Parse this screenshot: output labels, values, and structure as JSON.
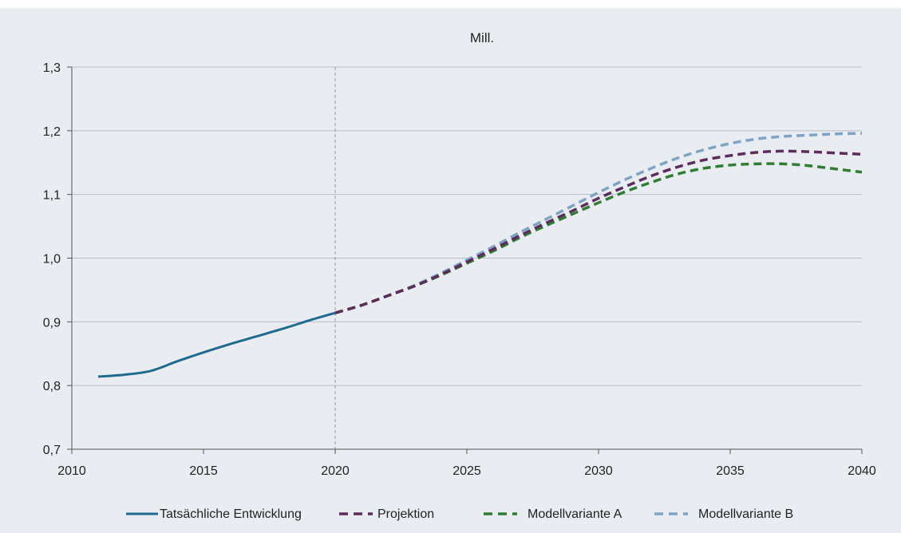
{
  "chart_data": {
    "type": "line",
    "unit_label": "Mill.",
    "xlim": [
      2010,
      2040
    ],
    "ylim": [
      0.7,
      1.3
    ],
    "x_ticks": [
      "2010",
      "2015",
      "2020",
      "2025",
      "2030",
      "2035",
      "2040"
    ],
    "y_ticks": [
      "0,7",
      "0,8",
      "0,9",
      "1,0",
      "1,1",
      "1,2",
      "1,3"
    ],
    "grid": "horizontal",
    "reference_line_x": 2020,
    "legend_position": "bottom",
    "series": [
      {
        "name": "Tatsächliche Entwicklung",
        "style": "solid",
        "color": "#1f6a8f",
        "x": [
          2011,
          2012,
          2013,
          2014,
          2015,
          2016,
          2017,
          2018,
          2019,
          2020
        ],
        "y": [
          0.814,
          0.817,
          0.823,
          0.838,
          0.852,
          0.865,
          0.877,
          0.889,
          0.902,
          0.914
        ]
      },
      {
        "name": "Projektion",
        "style": "dashed",
        "color": "#5c2d5b",
        "x": [
          2020,
          2021,
          2022,
          2023,
          2024,
          2025,
          2026,
          2027,
          2028,
          2029,
          2030,
          2031,
          2032,
          2033,
          2034,
          2035,
          2036,
          2037,
          2038,
          2039,
          2040
        ],
        "y": [
          0.914,
          0.926,
          0.941,
          0.956,
          0.974,
          0.994,
          1.014,
          1.035,
          1.055,
          1.074,
          1.094,
          1.112,
          1.129,
          1.143,
          1.154,
          1.161,
          1.166,
          1.168,
          1.167,
          1.165,
          1.163
        ]
      },
      {
        "name": "Modellvariante A",
        "style": "dashed",
        "color": "#2f7d32",
        "x": [
          2020,
          2021,
          2022,
          2023,
          2024,
          2025,
          2026,
          2027,
          2028,
          2029,
          2030,
          2031,
          2032,
          2033,
          2034,
          2035,
          2036,
          2037,
          2038,
          2039,
          2040
        ],
        "y": [
          0.914,
          0.926,
          0.941,
          0.956,
          0.973,
          0.992,
          1.011,
          1.032,
          1.051,
          1.069,
          1.087,
          1.104,
          1.119,
          1.132,
          1.141,
          1.146,
          1.148,
          1.148,
          1.145,
          1.14,
          1.135
        ]
      },
      {
        "name": "Modellvariante B",
        "style": "dashed",
        "color": "#7ea4c4",
        "x": [
          2020,
          2021,
          2022,
          2023,
          2024,
          2025,
          2026,
          2027,
          2028,
          2029,
          2030,
          2031,
          2032,
          2033,
          2034,
          2035,
          2036,
          2037,
          2038,
          2039,
          2040
        ],
        "y": [
          0.914,
          0.926,
          0.941,
          0.957,
          0.976,
          0.997,
          1.018,
          1.04,
          1.061,
          1.082,
          1.103,
          1.123,
          1.141,
          1.157,
          1.17,
          1.18,
          1.187,
          1.191,
          1.193,
          1.195,
          1.196
        ]
      }
    ]
  }
}
